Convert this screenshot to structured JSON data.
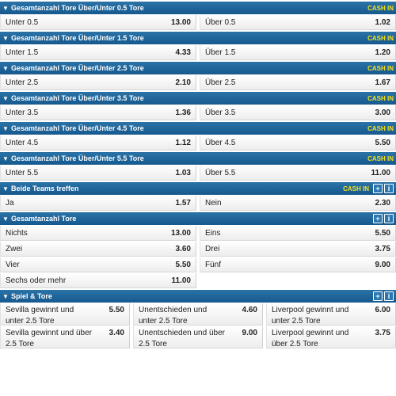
{
  "markets": [
    {
      "id": "ou05",
      "title": "Gesamtanzahl Tore Über/Unter 0.5 Tore",
      "cashin": "CASH IN",
      "plus": false,
      "info": false,
      "layout": "half",
      "rows": [
        [
          {
            "label": "Unter 0.5",
            "odd": "13.00"
          },
          {
            "label": "Über 0.5",
            "odd": "1.02"
          }
        ]
      ]
    },
    {
      "id": "ou15",
      "title": "Gesamtanzahl Tore Über/Unter 1.5 Tore",
      "cashin": "CASH IN",
      "plus": false,
      "info": false,
      "layout": "half",
      "rows": [
        [
          {
            "label": "Unter 1.5",
            "odd": "4.33"
          },
          {
            "label": "Über 1.5",
            "odd": "1.20"
          }
        ]
      ]
    },
    {
      "id": "ou25",
      "title": "Gesamtanzahl Tore Über/Unter 2.5 Tore",
      "cashin": "CASH IN",
      "plus": false,
      "info": false,
      "layout": "half",
      "rows": [
        [
          {
            "label": "Unter 2.5",
            "odd": "2.10"
          },
          {
            "label": "Über 2.5",
            "odd": "1.67"
          }
        ]
      ]
    },
    {
      "id": "ou35",
      "title": "Gesamtanzahl Tore Über/Unter 3.5 Tore",
      "cashin": "CASH IN",
      "plus": false,
      "info": false,
      "layout": "half",
      "rows": [
        [
          {
            "label": "Unter 3.5",
            "odd": "1.36"
          },
          {
            "label": "Über 3.5",
            "odd": "3.00"
          }
        ]
      ]
    },
    {
      "id": "ou45",
      "title": "Gesamtanzahl Tore Über/Unter 4.5 Tore",
      "cashin": "CASH IN",
      "plus": false,
      "info": false,
      "layout": "half",
      "rows": [
        [
          {
            "label": "Unter 4.5",
            "odd": "1.12"
          },
          {
            "label": "Über 4.5",
            "odd": "5.50"
          }
        ]
      ]
    },
    {
      "id": "ou55",
      "title": "Gesamtanzahl Tore Über/Unter 5.5 Tore",
      "cashin": "CASH IN",
      "plus": false,
      "info": false,
      "layout": "half",
      "rows": [
        [
          {
            "label": "Unter 5.5",
            "odd": "1.03"
          },
          {
            "label": "Über 5.5",
            "odd": "11.00"
          }
        ]
      ]
    },
    {
      "id": "btts",
      "title": "Beide Teams treffen",
      "cashin": "CASH IN",
      "plus": true,
      "info": true,
      "layout": "half",
      "rows": [
        [
          {
            "label": "Ja",
            "odd": "1.57"
          },
          {
            "label": "Nein",
            "odd": "2.30"
          }
        ]
      ]
    },
    {
      "id": "total",
      "title": "Gesamtanzahl Tore",
      "cashin": "",
      "plus": true,
      "info": true,
      "layout": "half",
      "rows": [
        [
          {
            "label": "Nichts",
            "odd": "13.00"
          },
          {
            "label": "Eins",
            "odd": "5.50"
          }
        ],
        [
          {
            "label": "Zwei",
            "odd": "3.60"
          },
          {
            "label": "Drei",
            "odd": "3.75"
          }
        ],
        [
          {
            "label": "Vier",
            "odd": "5.50"
          },
          {
            "label": "Fünf",
            "odd": "9.00"
          }
        ],
        [
          {
            "label": "Sechs oder mehr",
            "odd": "11.00"
          },
          null
        ]
      ]
    },
    {
      "id": "spieltore",
      "title": "Spiel & Tore",
      "cashin": "",
      "plus": true,
      "info": true,
      "layout": "third",
      "rows": [
        [
          {
            "label": "Sevilla gewinnt und unter 2.5 Tore",
            "odd": "5.50"
          },
          {
            "label": "Unentschieden und unter 2.5 Tore",
            "odd": "4.60"
          },
          {
            "label": "Liverpool gewinnt und unter 2.5 Tore",
            "odd": "6.00"
          }
        ],
        [
          {
            "label": "Sevilla gewinnt und über 2.5 Tore",
            "odd": "3.40"
          },
          {
            "label": "Unentschieden und über 2.5 Tore",
            "odd": "9.00"
          },
          {
            "label": "Liverpool gewinnt und über 2.5 Tore",
            "odd": "3.75"
          }
        ]
      ]
    }
  ],
  "icons": {
    "collapse": "triangle-down-icon",
    "plus": "plus-icon",
    "info": "info-icon"
  },
  "colors": {
    "header_top": "#2b73a7",
    "header_bottom": "#16598e",
    "cashin": "#f7e21b"
  }
}
